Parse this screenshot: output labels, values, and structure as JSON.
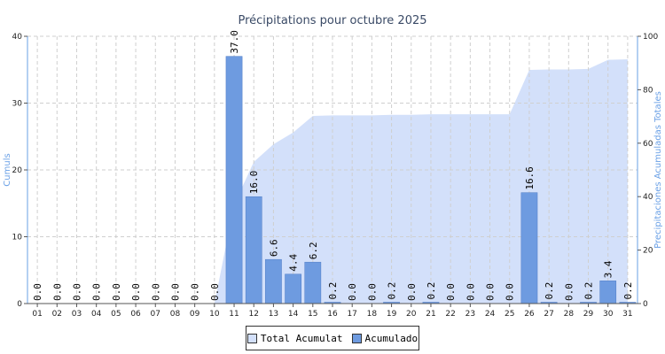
{
  "colors": {
    "area": "#d3e0fa",
    "bar": "#6e9be0",
    "bar_stroke": "#4f7cc6",
    "axis_label": "#6aa0e6",
    "grid": "#cfcfcf"
  },
  "chart_data": {
    "type": "bar",
    "title": "Précipitations pour octubre 2025",
    "ylabel": "Cumuls",
    "ylabel_right": "Precipitaciones Acumuladas Totales",
    "ylim": [
      0,
      40
    ],
    "ylim_right": [
      0,
      100
    ],
    "yticks": [
      "0",
      "10",
      "20",
      "30",
      "40"
    ],
    "yticks_right": [
      "0",
      "20",
      "40",
      "60",
      "80",
      "100"
    ],
    "categories": [
      "01",
      "02",
      "03",
      "04",
      "05",
      "06",
      "07",
      "08",
      "09",
      "10",
      "11",
      "12",
      "13",
      "14",
      "15",
      "16",
      "17",
      "18",
      "19",
      "20",
      "21",
      "22",
      "23",
      "24",
      "25",
      "26",
      "27",
      "28",
      "29",
      "30",
      "31"
    ],
    "series": [
      {
        "name": "Acumulado",
        "type": "bar",
        "axis": "left",
        "values": [
          0,
          0,
          0,
          0,
          0,
          0,
          0,
          0,
          0,
          0,
          37.0,
          16.0,
          6.6,
          4.4,
          6.2,
          0.2,
          0,
          0,
          0.2,
          0,
          0.2,
          0,
          0,
          0,
          0,
          16.6,
          0.2,
          0,
          0.2,
          3.4,
          0.2
        ]
      },
      {
        "name": "Total Acumulat",
        "type": "area",
        "axis": "right",
        "values": [
          0,
          0,
          0,
          0,
          0,
          0,
          0,
          0,
          0,
          0,
          37.0,
          53.0,
          59.6,
          64.0,
          70.2,
          70.4,
          70.4,
          70.4,
          70.6,
          70.6,
          70.8,
          70.8,
          70.8,
          70.8,
          70.8,
          87.4,
          87.6,
          87.6,
          87.8,
          91.2,
          91.4
        ]
      }
    ],
    "data_labels": [
      "0.0",
      "0.0",
      "0.0",
      "0.0",
      "0.0",
      "0.0",
      "0.0",
      "0.0",
      "0.0",
      "0.0",
      "37.0",
      "16.0",
      "6.6",
      "4.4",
      "6.2",
      "0.2",
      "0.0",
      "0.0",
      "0.2",
      "0.0",
      "0.2",
      "0.0",
      "0.0",
      "0.0",
      "0.0",
      "16.6",
      "0.2",
      "0.0",
      "0.2",
      "3.4",
      "0.2"
    ],
    "grid": true,
    "legend_position": "bottom-center"
  },
  "legend": {
    "items": [
      {
        "label": "Total Acumulat"
      },
      {
        "label": "Acumulado"
      }
    ]
  }
}
